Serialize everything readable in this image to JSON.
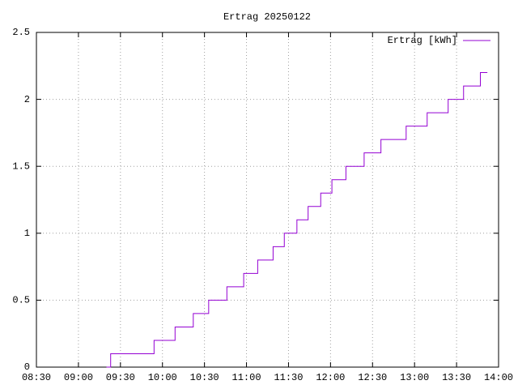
{
  "chart_data": {
    "type": "line",
    "title": "Ertrag 20250122",
    "x": [
      "09:20",
      "09:23",
      "09:54",
      "10:09",
      "10:22",
      "10:33",
      "10:46",
      "10:58",
      "11:08",
      "11:19",
      "11:27",
      "11:36",
      "11:44",
      "11:53",
      "12:01",
      "12:11",
      "12:24",
      "12:36",
      "12:54",
      "13:09",
      "13:24",
      "13:35",
      "13:47",
      "13:52"
    ],
    "series": [
      {
        "name": "Ertrag [kWh]",
        "color": "#9400d3",
        "values": [
          0,
          0.1,
          0.2,
          0.3,
          0.4,
          0.5,
          0.6,
          0.7,
          0.8,
          0.9,
          1.0,
          1.1,
          1.2,
          1.3,
          1.4,
          1.5,
          1.6,
          1.7,
          1.8,
          1.9,
          2.0,
          2.1,
          2.2,
          2.2
        ]
      }
    ],
    "step": true,
    "xlim": [
      "08:30",
      "14:00"
    ],
    "xticks": [
      "08:30",
      "09:00",
      "09:30",
      "10:00",
      "10:30",
      "11:00",
      "11:30",
      "12:00",
      "12:30",
      "13:00",
      "13:30",
      "14:00"
    ],
    "ylim": [
      0,
      2.5
    ],
    "yticks": [
      0,
      0.5,
      1,
      1.5,
      2,
      2.5
    ],
    "grid": true,
    "legend": "top-right"
  }
}
